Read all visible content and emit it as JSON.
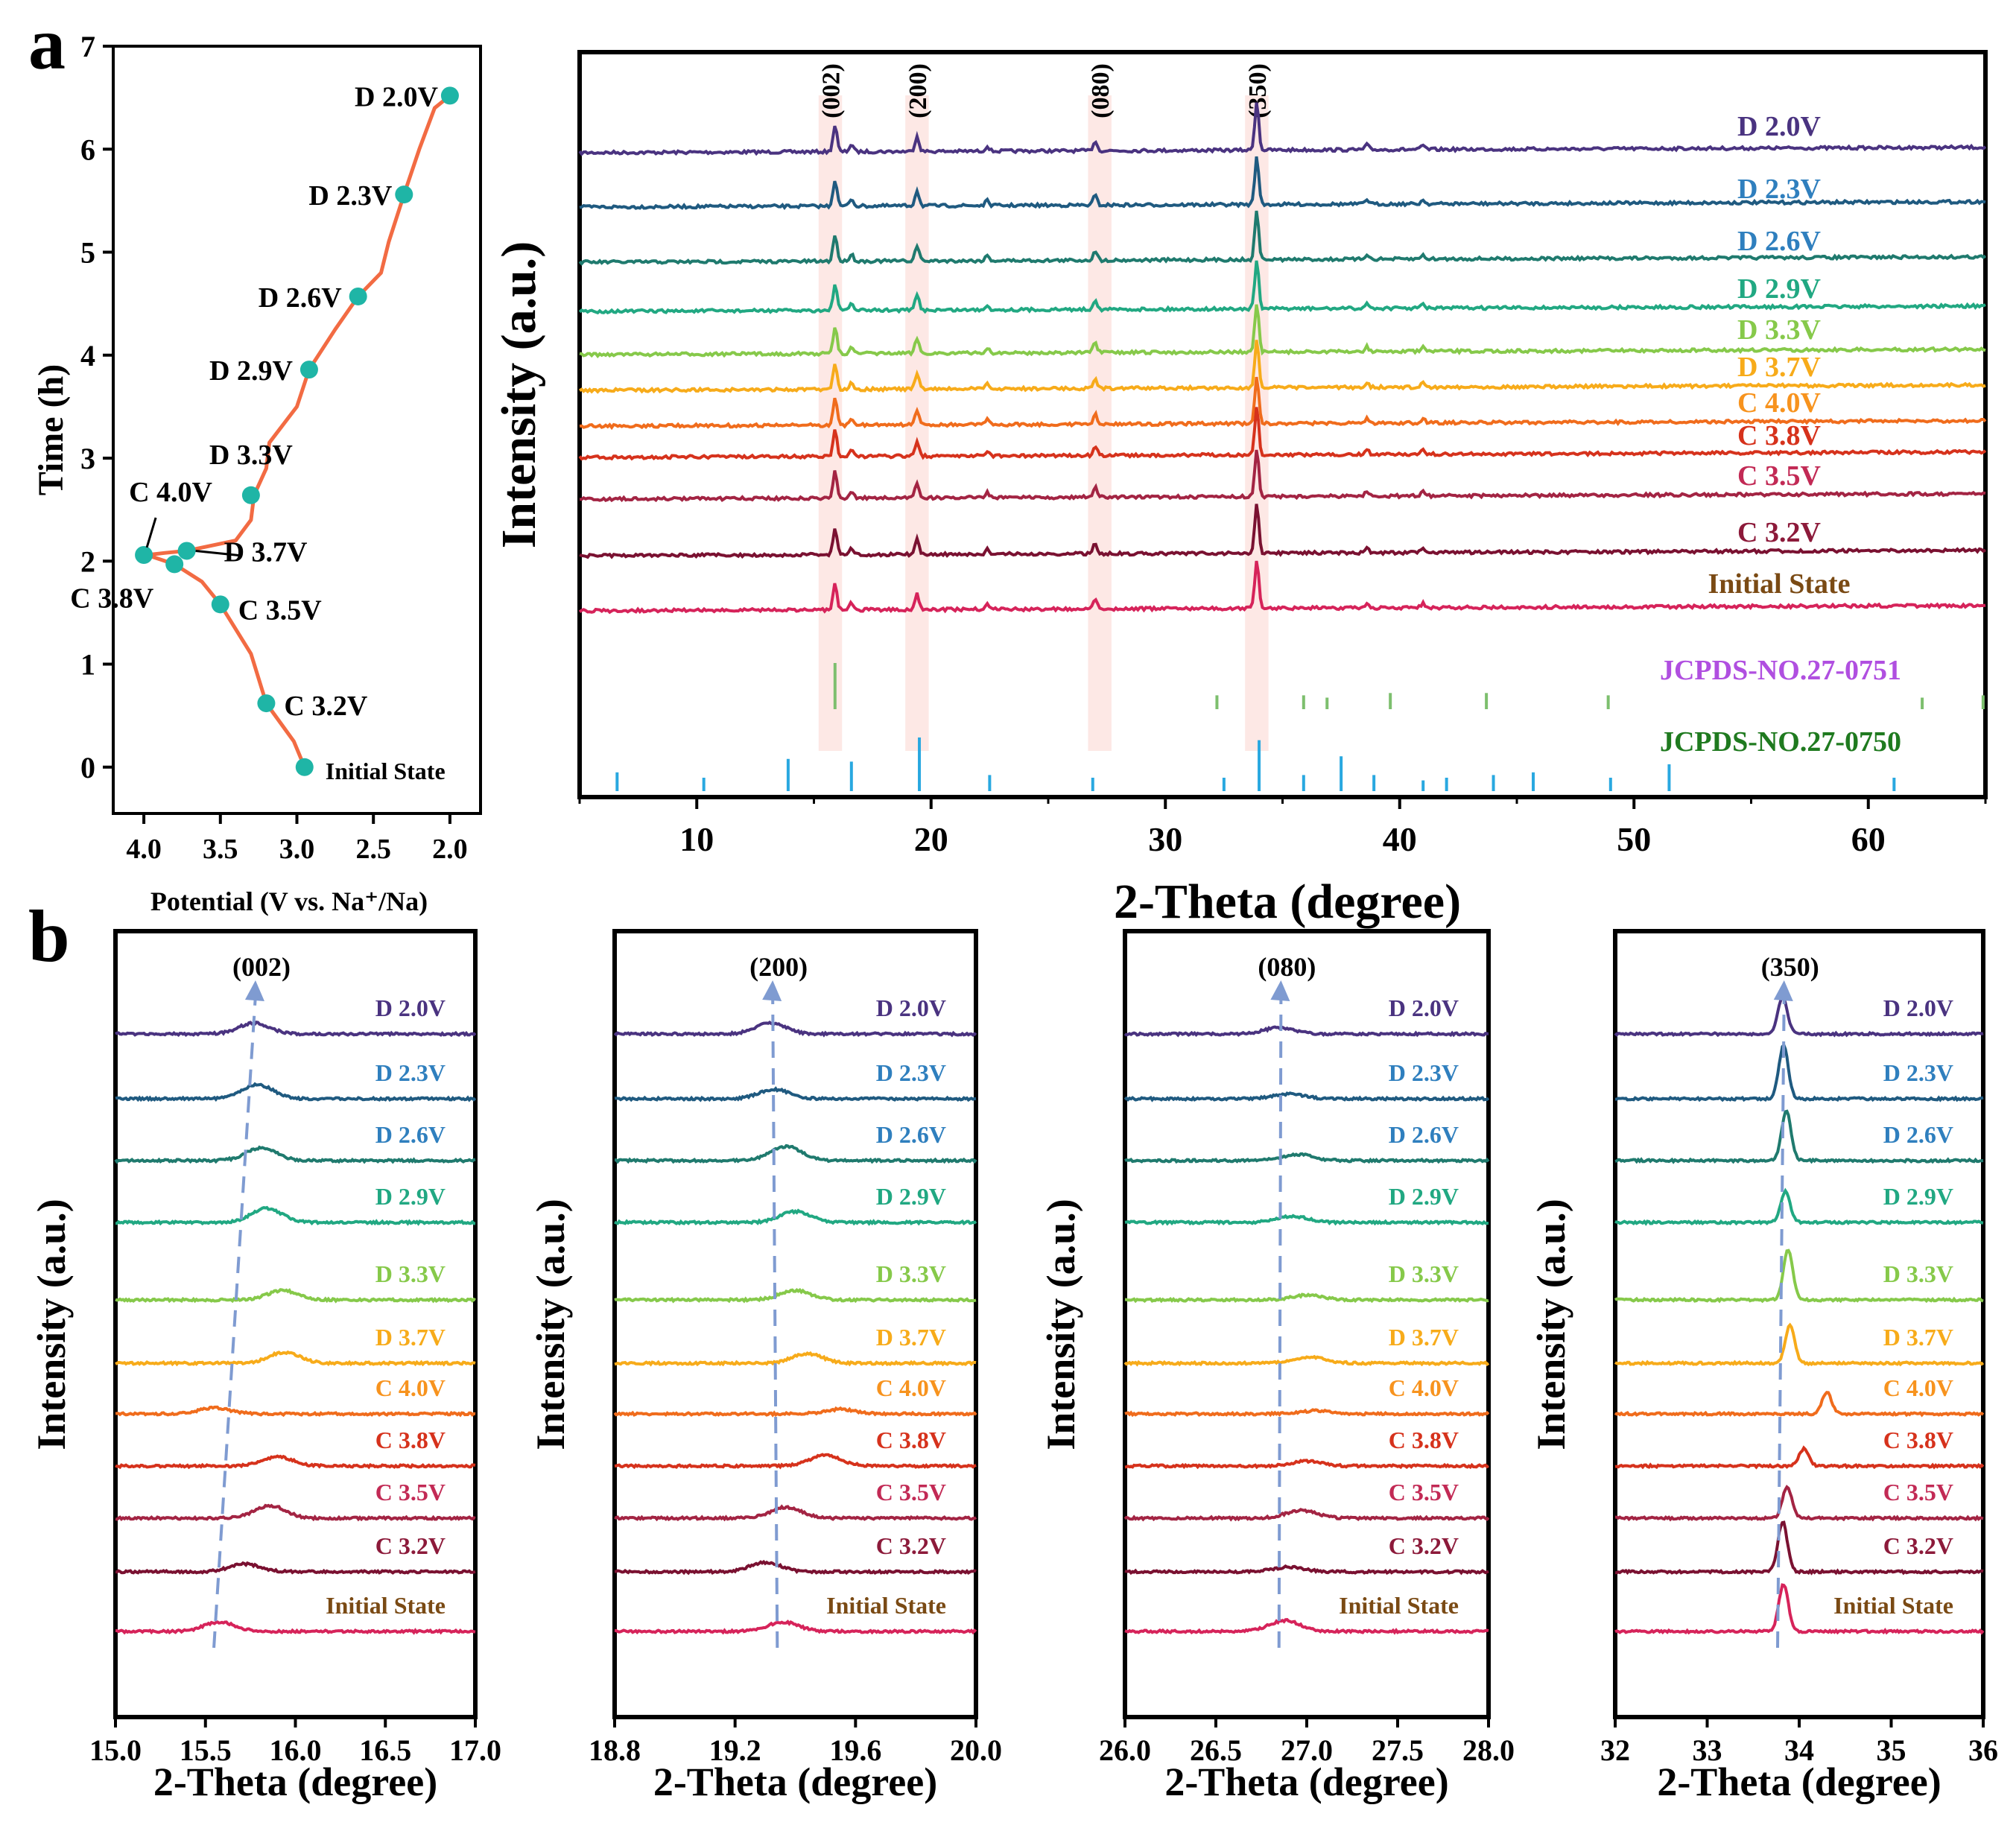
{
  "panel_labels": {
    "a": "a",
    "b": "b"
  },
  "stage_colors": [
    "#4a3380",
    "#1f5a80",
    "#1f7a6e",
    "#21a882",
    "#86c94a",
    "#f7ab1a",
    "#f06c1c",
    "#d6321c",
    "#a32443",
    "#7a1131",
    "#d6235a"
  ],
  "stage_label_colors": [
    "#4a3380",
    "#2f7fbe",
    "#2f7fbe",
    "#21a882",
    "#86c94a",
    "#f7ab1a",
    "#f7931e",
    "#d6321c",
    "#c22a55",
    "#8c1a3a",
    "#7a4a14"
  ],
  "chart_data": [
    {
      "type": "line",
      "panel": "a-left",
      "xlabel": "Potential (V vs. Na⁺/Na)",
      "ylabel": "Time (h)",
      "xlim": [
        4.2,
        1.8
      ],
      "ylim": [
        -0.45,
        7
      ],
      "xticks": [
        4.0,
        3.5,
        3.0,
        2.5,
        2.0
      ],
      "xtick_labels": [
        "4.0",
        "3.5",
        "3.0",
        "2.5",
        "2.0"
      ],
      "yticks": [
        0,
        1,
        2,
        3,
        4,
        5,
        6,
        7
      ],
      "ytick_labels": [
        "0",
        "1",
        "2",
        "3",
        "4",
        "5",
        "6",
        "7"
      ],
      "curve_color": "#f26b43",
      "marker_color": "#1fb5a6",
      "curve": [
        [
          2.95,
          0.0
        ],
        [
          3.02,
          0.25
        ],
        [
          3.2,
          0.62
        ],
        [
          3.3,
          1.1
        ],
        [
          3.5,
          1.58
        ],
        [
          3.62,
          1.8
        ],
        [
          3.8,
          1.97
        ],
        [
          3.98,
          2.06
        ],
        [
          3.86,
          2.08
        ],
        [
          3.72,
          2.1
        ],
        [
          3.4,
          2.2
        ],
        [
          3.3,
          2.4
        ],
        [
          3.28,
          2.64
        ],
        [
          3.2,
          2.9
        ],
        [
          3.18,
          3.15
        ],
        [
          3.0,
          3.5
        ],
        [
          2.92,
          3.86
        ],
        [
          2.75,
          4.25
        ],
        [
          2.6,
          4.57
        ],
        [
          2.45,
          4.8
        ],
        [
          2.4,
          5.1
        ],
        [
          2.3,
          5.56
        ],
        [
          2.2,
          6.0
        ],
        [
          2.1,
          6.4
        ],
        [
          2.0,
          6.52
        ]
      ],
      "markers": [
        {
          "label": "Initial State",
          "v": 2.95,
          "t": 0.0
        },
        {
          "label": "C 3.2V",
          "v": 3.2,
          "t": 0.62
        },
        {
          "label": "C 3.5V",
          "v": 3.5,
          "t": 1.58
        },
        {
          "label": "C 3.8V",
          "v": 3.8,
          "t": 1.97
        },
        {
          "label": "C 4.0V",
          "v": 4.0,
          "t": 2.06
        },
        {
          "label": "D 3.7V",
          "v": 3.72,
          "t": 2.1
        },
        {
          "label": "D 3.3V",
          "v": 3.3,
          "t": 2.64
        },
        {
          "label": "D 2.9V",
          "v": 2.92,
          "t": 3.86
        },
        {
          "label": "D 2.6V",
          "v": 2.6,
          "t": 4.57
        },
        {
          "label": "D 2.3V",
          "v": 2.3,
          "t": 5.56
        },
        {
          "label": "D 2.0V",
          "v": 2.0,
          "t": 6.52
        }
      ]
    },
    {
      "type": "line",
      "panel": "a-right",
      "xlabel": "2-Theta (degree)",
      "ylabel": "Intensity (a.u.)",
      "xlim": [
        5,
        65
      ],
      "xticks": [
        10,
        20,
        30,
        40,
        50,
        60
      ],
      "xtick_labels": [
        "10",
        "20",
        "30",
        "40",
        "50",
        "60"
      ],
      "series_top_down": [
        "D 2.0V",
        "D 2.3V",
        "D 2.6V",
        "D 2.9V",
        "D 3.3V",
        "D 3.7V",
        "C 4.0V",
        "C 3.8V",
        "C 3.5V",
        "C 3.2V",
        "Initial State"
      ],
      "peaks_deg": [
        15.9,
        16.6,
        19.4,
        22.4,
        27.0,
        33.9,
        38.6,
        41.0
      ],
      "peak_rel_heights": [
        0.55,
        0.15,
        0.32,
        0.1,
        0.2,
        1.0,
        0.1,
        0.08
      ],
      "highlight_bands": [
        {
          "label": "(002)",
          "from": 15.2,
          "to": 16.2
        },
        {
          "label": "(200)",
          "from": 18.9,
          "to": 19.9
        },
        {
          "label": "(080)",
          "from": 26.7,
          "to": 27.7
        },
        {
          "label": "(350)",
          "from": 33.4,
          "to": 34.4
        }
      ],
      "reference_patterns": [
        {
          "label": "JCPDS-NO.27-0751",
          "label_color": "#b04fe0",
          "line_color": "#7dbf6e",
          "positions": [
            15.9,
            32.2,
            35.9,
            36.9,
            39.6,
            43.7,
            48.9,
            62.3,
            64.9
          ],
          "heights": [
            1.0,
            0.3,
            0.3,
            0.25,
            0.35,
            0.35,
            0.3,
            0.25,
            0.3
          ]
        },
        {
          "label": "JCPDS-NO.27-0750",
          "label_color": "#1f7a1f",
          "line_color": "#29a8e0",
          "positions": [
            6.6,
            10.3,
            13.9,
            16.6,
            19.5,
            22.5,
            26.9,
            32.5,
            34.0,
            35.9,
            37.5,
            38.9,
            41.0,
            42.0,
            44.0,
            45.7,
            49.0,
            51.5,
            61.1
          ],
          "heights": [
            0.35,
            0.25,
            0.6,
            0.55,
            1.0,
            0.3,
            0.25,
            0.25,
            0.95,
            0.3,
            0.65,
            0.3,
            0.2,
            0.25,
            0.3,
            0.35,
            0.25,
            0.5,
            0.25
          ]
        }
      ]
    },
    {
      "type": "line",
      "panel": "b-002",
      "peak_label": "(002)",
      "xlabel": "2-Theta (degree)",
      "ylabel": "Intensity (a.u.)",
      "xlim": [
        15.0,
        17.0
      ],
      "xticks": [
        15.0,
        15.5,
        16.0,
        16.5,
        17.0
      ],
      "xtick_labels": [
        "15.0",
        "15.5",
        "16.0",
        "16.5",
        "17.0"
      ],
      "series_top_down": [
        "D 2.0V",
        "D 2.3V",
        "D 2.6V",
        "D 2.9V",
        "D 3.3V",
        "D 3.7V",
        "C 4.0V",
        "C 3.8V",
        "C 3.5V",
        "C 3.2V",
        "Initial State"
      ],
      "peak_positions": [
        15.77,
        15.79,
        15.81,
        15.84,
        15.93,
        15.94,
        15.55,
        15.9,
        15.86,
        15.72,
        15.58
      ],
      "peak_heights": [
        0.35,
        0.45,
        0.4,
        0.45,
        0.3,
        0.35,
        0.2,
        0.3,
        0.4,
        0.25,
        0.3
      ]
    },
    {
      "type": "line",
      "panel": "b-200",
      "peak_label": "(200)",
      "xlabel": "2-Theta (degree)",
      "ylabel": "Intensity (a.u.)",
      "xlim": [
        18.8,
        20.0
      ],
      "xticks": [
        18.8,
        19.2,
        19.6,
        20.0
      ],
      "xtick_labels": [
        "18.8",
        "19.2",
        "19.6",
        "20.0"
      ],
      "series_top_down": [
        "D 2.0V",
        "D 2.3V",
        "D 2.6V",
        "D 2.9V",
        "D 3.3V",
        "D 3.7V",
        "C 4.0V",
        "C 3.8V",
        "C 3.5V",
        "C 3.2V",
        "Initial State"
      ],
      "peak_positions": [
        19.32,
        19.33,
        19.37,
        19.4,
        19.4,
        19.44,
        19.55,
        19.5,
        19.37,
        19.3,
        19.36
      ],
      "peak_heights": [
        0.35,
        0.3,
        0.45,
        0.35,
        0.3,
        0.3,
        0.15,
        0.35,
        0.35,
        0.3,
        0.3
      ]
    },
    {
      "type": "line",
      "panel": "b-080",
      "peak_label": "(080)",
      "xlabel": "2-Theta (degree)",
      "ylabel": "Intensity (a.u.)",
      "xlim": [
        26.0,
        28.0
      ],
      "xticks": [
        26.0,
        26.5,
        27.0,
        27.5,
        28.0
      ],
      "xtick_labels": [
        "26.0",
        "26.5",
        "27.0",
        "27.5",
        "28.0"
      ],
      "series_top_down": [
        "D 2.0V",
        "D 2.3V",
        "D 2.6V",
        "D 2.9V",
        "D 3.3V",
        "D 3.7V",
        "C 4.0V",
        "C 3.8V",
        "C 3.5V",
        "C 3.2V",
        "Initial State"
      ],
      "peak_positions": [
        26.85,
        26.9,
        26.95,
        26.92,
        27.0,
        27.02,
        27.05,
        27.0,
        26.97,
        26.9,
        26.88
      ],
      "peak_heights": [
        0.2,
        0.15,
        0.2,
        0.2,
        0.15,
        0.2,
        0.1,
        0.15,
        0.25,
        0.15,
        0.35
      ]
    },
    {
      "type": "line",
      "panel": "b-350",
      "peak_label": "(350)",
      "xlabel": "2-Theta (degree)",
      "ylabel": "Intensity (a.u.)",
      "xlim": [
        32,
        36
      ],
      "xticks": [
        32,
        33,
        34,
        35,
        36
      ],
      "xtick_labels": [
        "32",
        "33",
        "34",
        "35",
        "36"
      ],
      "series_top_down": [
        "D 2.0V",
        "D 2.3V",
        "D 2.6V",
        "D 2.9V",
        "D 3.3V",
        "D 3.7V",
        "C 4.0V",
        "C 3.8V",
        "C 3.5V",
        "C 3.2V",
        "Initial State"
      ],
      "peak_positions": [
        33.82,
        33.83,
        33.86,
        33.85,
        33.88,
        33.9,
        34.3,
        34.05,
        33.87,
        33.82,
        33.83
      ],
      "peak_heights": [
        1.2,
        1.7,
        1.6,
        1.0,
        1.6,
        1.2,
        0.7,
        0.55,
        1.0,
        1.6,
        1.5
      ]
    }
  ]
}
